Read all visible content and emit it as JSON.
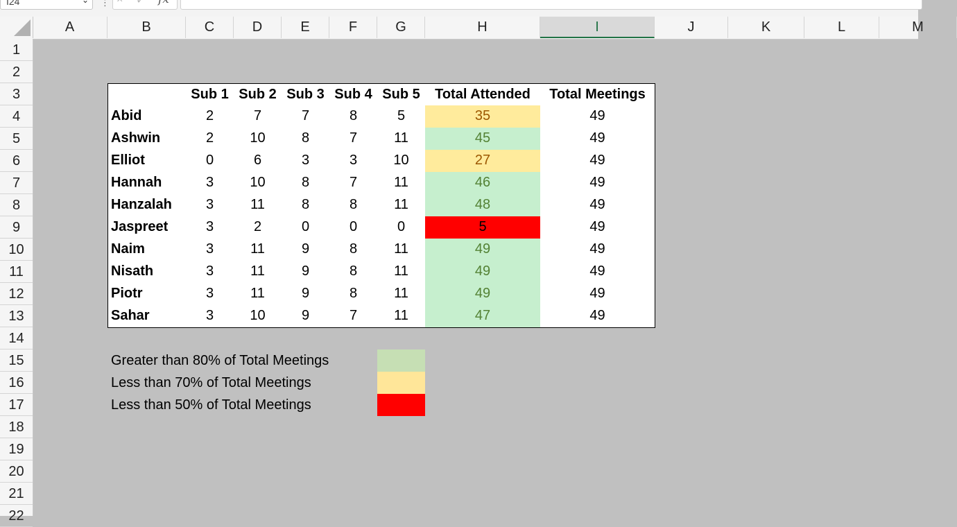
{
  "formula_bar": {
    "name_box": "I24",
    "dropdown_icon": "chevron-down-icon",
    "cancel_icon": "×",
    "enter_icon": "✓",
    "fx_label": "fx",
    "formula": ""
  },
  "columns": [
    "A",
    "B",
    "C",
    "D",
    "E",
    "F",
    "G",
    "H",
    "I",
    "J",
    "K",
    "L",
    "M"
  ],
  "selected_column": "I",
  "rows": [
    "1",
    "2",
    "3",
    "4",
    "5",
    "6",
    "7",
    "8",
    "9",
    "10",
    "11",
    "12",
    "13",
    "14",
    "15",
    "16",
    "17",
    "18",
    "19",
    "20",
    "21",
    "22"
  ],
  "table": {
    "headers": [
      "",
      "Sub 1",
      "Sub 2",
      "Sub 3",
      "Sub 4",
      "Sub 5",
      "Total Attended",
      "Total Meetings"
    ],
    "rows": [
      {
        "name": "Abid",
        "subs": [
          "2",
          "7",
          "7",
          "8",
          "5"
        ],
        "total": "35",
        "meetings": "49",
        "status": "yellow"
      },
      {
        "name": "Ashwin",
        "subs": [
          "2",
          "10",
          "8",
          "7",
          "11"
        ],
        "total": "45",
        "meetings": "49",
        "status": "green"
      },
      {
        "name": "Elliot",
        "subs": [
          "0",
          "6",
          "3",
          "3",
          "10"
        ],
        "total": "27",
        "meetings": "49",
        "status": "yellow"
      },
      {
        "name": "Hannah",
        "subs": [
          "3",
          "10",
          "8",
          "7",
          "11"
        ],
        "total": "46",
        "meetings": "49",
        "status": "green"
      },
      {
        "name": "Hanzalah",
        "subs": [
          "3",
          "11",
          "8",
          "8",
          "11"
        ],
        "total": "48",
        "meetings": "49",
        "status": "green"
      },
      {
        "name": "Jaspreet",
        "subs": [
          "3",
          "2",
          "0",
          "0",
          "0"
        ],
        "total": "5",
        "meetings": "49",
        "status": "red"
      },
      {
        "name": "Naim",
        "subs": [
          "3",
          "11",
          "9",
          "8",
          "11"
        ],
        "total": "49",
        "meetings": "49",
        "status": "green"
      },
      {
        "name": "Nisath",
        "subs": [
          "3",
          "11",
          "9",
          "8",
          "11"
        ],
        "total": "49",
        "meetings": "49",
        "status": "green"
      },
      {
        "name": "Piotr",
        "subs": [
          "3",
          "11",
          "9",
          "8",
          "11"
        ],
        "total": "49",
        "meetings": "49",
        "status": "green"
      },
      {
        "name": "Sahar",
        "subs": [
          "3",
          "10",
          "9",
          "7",
          "11"
        ],
        "total": "47",
        "meetings": "49",
        "status": "green"
      }
    ]
  },
  "legend": [
    {
      "label": "Greater than 80% of Total Meetings",
      "color": "#c6dfb4"
    },
    {
      "label": "Less than 70% of Total Meetings",
      "color": "#ffe699"
    },
    {
      "label": "Less than 50% of Total Meetings",
      "color": "#ff0000"
    }
  ]
}
